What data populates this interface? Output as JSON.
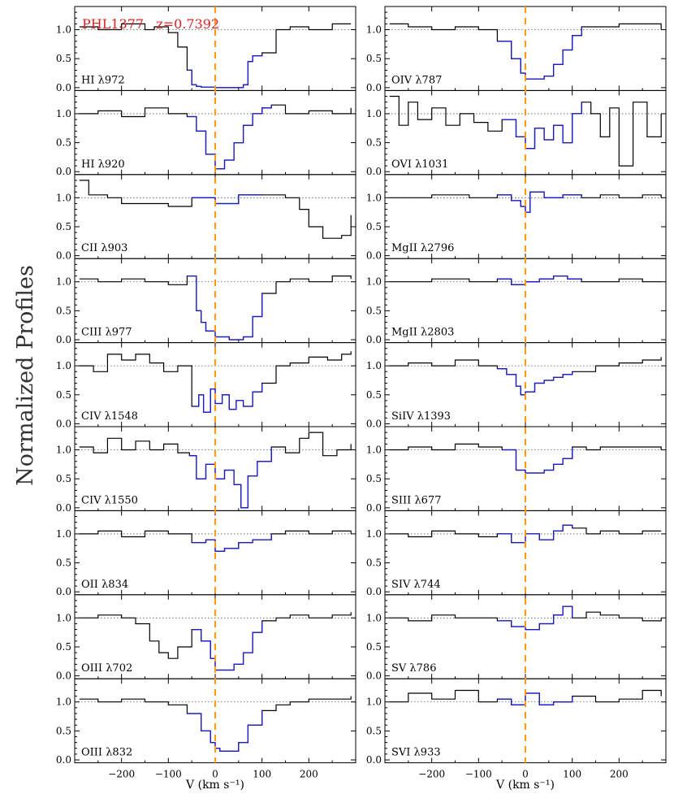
{
  "figure": {
    "ylabel": "Normalized Profiles",
    "xlabel": "V (km s⁻¹)",
    "object_label": "PHL1377   z=0.7392",
    "colors": {
      "axis": "#000000",
      "spectrum": "#000000",
      "fit_window": "#1a1acc",
      "zero_velocity_line": "#ff9a1a",
      "object_label": "#e02020"
    }
  },
  "chart_data": [
    {
      "type": "line",
      "layout": "2 columns x 9 rows of stacked absorption-line panels sharing x and y axes",
      "xlim": [
        -300,
        300
      ],
      "ylim": [
        -0.05,
        1.4
      ],
      "xticks": [
        -200,
        -100,
        0,
        100,
        200
      ],
      "yticks": [
        0.0,
        0.5,
        1.0
      ],
      "continuum_level": 1.0,
      "zero_velocity_marker": 0,
      "panels": [
        {
          "column": "left",
          "label": "HI λ972",
          "series": [
            {
              "x": [
                -290,
                -250,
                -200,
                -150,
                -130,
                -100,
                -80,
                -60,
                -50,
                -40,
                -30,
                0,
                30,
                60,
                70,
                80,
                100,
                130,
                160,
                200,
                250,
                290
              ],
              "y": [
                1.05,
                1.0,
                1.1,
                1.0,
                1.05,
                0.95,
                0.7,
                0.3,
                0.05,
                0.02,
                0.01,
                0.0,
                0.0,
                0.05,
                0.45,
                0.55,
                0.6,
                1.0,
                1.05,
                1.0,
                1.1,
                1.1
              ]
            }
          ]
        },
        {
          "column": "left",
          "label": "HI λ920",
          "series": [
            {
              "x": [
                -290,
                -250,
                -200,
                -150,
                -100,
                -60,
                -40,
                -20,
                0,
                20,
                40,
                60,
                80,
                100,
                120,
                150,
                200,
                250,
                290
              ],
              "y": [
                1.0,
                1.05,
                0.95,
                1.1,
                1.0,
                0.95,
                0.7,
                0.3,
                0.05,
                0.2,
                0.5,
                0.8,
                1.0,
                1.1,
                1.15,
                1.0,
                1.05,
                1.0,
                1.1
              ]
            }
          ]
        },
        {
          "column": "left",
          "label": "CII λ903",
          "series": [
            {
              "x": [
                -290,
                -270,
                -230,
                -200,
                -150,
                -100,
                -50,
                0,
                50,
                100,
                150,
                180,
                200,
                230,
                250,
                270,
                290
              ],
              "y": [
                1.3,
                1.05,
                1.0,
                0.9,
                0.9,
                0.85,
                1.0,
                0.9,
                1.05,
                1.05,
                1.0,
                0.8,
                0.5,
                0.3,
                0.3,
                0.35,
                0.7
              ]
            }
          ]
        },
        {
          "column": "left",
          "label": "CIII λ977",
          "series": [
            {
              "x": [
                -290,
                -250,
                -200,
                -150,
                -100,
                -60,
                -40,
                -30,
                -20,
                0,
                30,
                60,
                80,
                100,
                130,
                160,
                200,
                250,
                290
              ],
              "y": [
                1.05,
                1.0,
                1.05,
                1.0,
                0.95,
                1.1,
                0.5,
                0.3,
                0.15,
                0.05,
                0.0,
                0.05,
                0.4,
                0.8,
                1.0,
                1.05,
                1.0,
                1.1,
                1.05
              ]
            }
          ]
        },
        {
          "column": "left",
          "label": "CIV λ1548",
          "series": [
            {
              "x": [
                -290,
                -260,
                -230,
                -200,
                -170,
                -140,
                -110,
                -80,
                -50,
                -35,
                -25,
                -10,
                0,
                15,
                30,
                45,
                60,
                80,
                100,
                130,
                160,
                200,
                240,
                270,
                290
              ],
              "y": [
                1.0,
                0.9,
                1.2,
                1.1,
                1.2,
                1.05,
                0.9,
                1.0,
                0.3,
                0.5,
                0.2,
                0.6,
                0.35,
                0.5,
                0.25,
                0.4,
                0.3,
                0.55,
                0.7,
                1.0,
                1.05,
                1.15,
                1.1,
                1.2,
                1.25
              ]
            }
          ]
        },
        {
          "column": "left",
          "label": "CIV λ1550",
          "series": [
            {
              "x": [
                -290,
                -260,
                -230,
                -200,
                -170,
                -140,
                -110,
                -80,
                -55,
                -40,
                -20,
                0,
                20,
                40,
                55,
                70,
                90,
                120,
                150,
                180,
                200,
                230,
                260,
                290
              ],
              "y": [
                1.05,
                0.95,
                1.2,
                1.0,
                1.15,
                1.0,
                1.1,
                0.95,
                0.9,
                0.5,
                0.75,
                0.5,
                0.65,
                0.4,
                0.0,
                0.55,
                0.8,
                1.05,
                0.95,
                1.2,
                1.3,
                0.9,
                1.0,
                1.1
              ]
            }
          ]
        },
        {
          "column": "left",
          "label": "OII λ834",
          "series": [
            {
              "x": [
                -290,
                -250,
                -200,
                -150,
                -100,
                -50,
                -20,
                0,
                20,
                50,
                80,
                120,
                150,
                200,
                250,
                290
              ],
              "y": [
                1.0,
                1.05,
                0.95,
                1.05,
                1.0,
                0.85,
                0.9,
                0.7,
                0.75,
                0.85,
                0.9,
                1.0,
                1.05,
                1.0,
                1.05,
                1.0
              ]
            }
          ]
        },
        {
          "column": "left",
          "label": "OIII λ702",
          "series": [
            {
              "x": [
                -290,
                -250,
                -200,
                -170,
                -140,
                -120,
                -100,
                -80,
                -50,
                -30,
                -10,
                0,
                20,
                40,
                60,
                80,
                100,
                130,
                160,
                200,
                250,
                290
              ],
              "y": [
                1.0,
                1.05,
                1.0,
                0.9,
                0.6,
                0.4,
                0.3,
                0.5,
                0.8,
                0.6,
                0.3,
                0.1,
                0.1,
                0.2,
                0.4,
                0.75,
                0.95,
                1.0,
                1.05,
                1.0,
                1.05,
                1.1
              ]
            }
          ]
        },
        {
          "column": "left",
          "label": "OIII λ832",
          "series": [
            {
              "x": [
                -290,
                -250,
                -200,
                -150,
                -100,
                -60,
                -30,
                -10,
                0,
                10,
                30,
                50,
                70,
                100,
                130,
                160,
                200,
                250,
                290
              ],
              "y": [
                1.05,
                1.0,
                1.05,
                1.0,
                0.95,
                0.8,
                0.5,
                0.3,
                0.2,
                0.15,
                0.15,
                0.3,
                0.6,
                0.85,
                0.95,
                1.0,
                1.05,
                1.05,
                1.1
              ]
            }
          ]
        },
        {
          "column": "right",
          "label": "OIV λ787",
          "series": [
            {
              "x": [
                -290,
                -250,
                -200,
                -150,
                -100,
                -60,
                -30,
                -10,
                0,
                20,
                40,
                60,
                80,
                100,
                120,
                150,
                200,
                250,
                290
              ],
              "y": [
                1.1,
                1.05,
                1.0,
                1.05,
                1.0,
                0.8,
                0.5,
                0.25,
                0.15,
                0.15,
                0.2,
                0.4,
                0.65,
                0.9,
                1.05,
                1.05,
                1.1,
                1.1,
                1.0
              ]
            }
          ]
        },
        {
          "column": "right",
          "label": "OVI λ1031",
          "series": [
            {
              "x": [
                -290,
                -270,
                -250,
                -230,
                -200,
                -170,
                -140,
                -110,
                -80,
                -50,
                -20,
                0,
                20,
                40,
                60,
                80,
                100,
                120,
                140,
                160,
                180,
                200,
                230,
                260,
                290
              ],
              "y": [
                1.3,
                0.8,
                1.2,
                0.9,
                1.1,
                0.8,
                1.0,
                0.85,
                0.7,
                0.9,
                0.6,
                0.4,
                0.75,
                0.55,
                0.8,
                0.5,
                1.0,
                1.2,
                1.0,
                0.6,
                1.1,
                0.1,
                1.2,
                0.6,
                1.0
              ]
            }
          ]
        },
        {
          "column": "right",
          "label": "MgII λ2796",
          "series": [
            {
              "x": [
                -290,
                -200,
                -120,
                -60,
                -30,
                -10,
                0,
                10,
                40,
                80,
                120,
                160,
                200,
                250,
                290
              ],
              "y": [
                1.0,
                1.05,
                1.0,
                1.05,
                0.95,
                0.85,
                0.75,
                1.1,
                1.0,
                1.05,
                1.0,
                1.05,
                1.0,
                1.05,
                1.0
              ]
            }
          ]
        },
        {
          "column": "right",
          "label": "MgII λ2803",
          "series": [
            {
              "x": [
                -290,
                -200,
                -120,
                -60,
                -30,
                0,
                30,
                60,
                90,
                120,
                160,
                200,
                250,
                290
              ],
              "y": [
                1.0,
                1.05,
                1.0,
                1.05,
                0.95,
                1.0,
                1.05,
                1.1,
                1.05,
                1.0,
                1.0,
                1.05,
                1.0,
                1.0
              ]
            }
          ]
        },
        {
          "column": "right",
          "label": "SiIV λ1393",
          "series": [
            {
              "x": [
                -290,
                -250,
                -200,
                -150,
                -100,
                -60,
                -40,
                -20,
                -10,
                0,
                20,
                40,
                60,
                80,
                100,
                150,
                200,
                250,
                290
              ],
              "y": [
                1.0,
                1.05,
                1.0,
                1.1,
                1.0,
                0.95,
                0.85,
                0.65,
                0.5,
                0.55,
                0.7,
                0.75,
                0.8,
                0.85,
                0.9,
                1.0,
                1.05,
                1.1,
                1.15
              ]
            }
          ]
        },
        {
          "column": "right",
          "label": "SIII λ677",
          "series": [
            {
              "x": [
                -290,
                -250,
                -200,
                -150,
                -100,
                -50,
                -20,
                0,
                20,
                40,
                60,
                80,
                100,
                130,
                160,
                200,
                250,
                290
              ],
              "y": [
                1.0,
                1.05,
                1.0,
                1.1,
                1.05,
                1.0,
                0.65,
                0.6,
                0.6,
                0.65,
                0.75,
                0.85,
                1.05,
                1.0,
                1.05,
                1.05,
                1.05,
                1.0
              ]
            }
          ]
        },
        {
          "column": "right",
          "label": "SIV λ744",
          "series": [
            {
              "x": [
                -290,
                -250,
                -200,
                -150,
                -100,
                -60,
                -30,
                0,
                30,
                60,
                80,
                100,
                130,
                160,
                200,
                250,
                290
              ],
              "y": [
                1.0,
                0.95,
                1.05,
                1.0,
                0.95,
                1.0,
                0.85,
                1.0,
                0.9,
                1.05,
                1.15,
                1.1,
                1.0,
                1.05,
                1.0,
                1.05,
                1.05
              ]
            }
          ]
        },
        {
          "column": "right",
          "label": "SV λ786",
          "series": [
            {
              "x": [
                -290,
                -250,
                -200,
                -150,
                -100,
                -60,
                -30,
                0,
                30,
                60,
                80,
                100,
                130,
                160,
                200,
                250,
                290
              ],
              "y": [
                1.0,
                0.95,
                1.05,
                1.0,
                1.0,
                0.95,
                0.85,
                0.8,
                0.9,
                1.05,
                1.2,
                1.0,
                1.1,
                1.05,
                1.0,
                0.95,
                1.0
              ]
            }
          ]
        },
        {
          "column": "right",
          "label": "SVI λ933",
          "series": [
            {
              "x": [
                -290,
                -250,
                -200,
                -150,
                -100,
                -60,
                -30,
                0,
                30,
                60,
                100,
                150,
                200,
                250,
                290
              ],
              "y": [
                1.0,
                1.15,
                1.05,
                1.2,
                1.0,
                1.05,
                0.95,
                1.15,
                0.95,
                1.0,
                1.1,
                1.0,
                1.05,
                1.2,
                1.1
              ]
            }
          ]
        }
      ]
    }
  ]
}
